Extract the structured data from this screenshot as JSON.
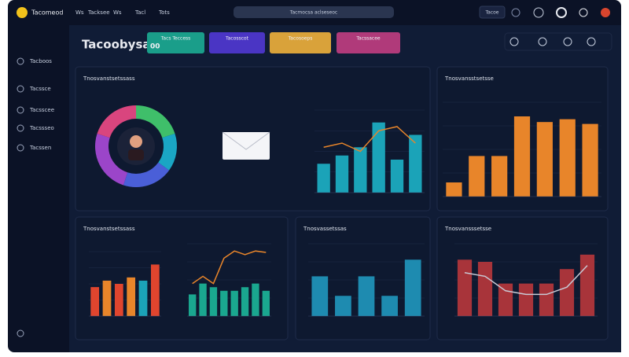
{
  "header": {
    "logo": "Tacomeod",
    "nav": [
      "Ws",
      "Tacksee",
      "Ws",
      "Tacl",
      "Tots"
    ],
    "search": "Tacmocsa aclseseoc",
    "button": "Tacoe"
  },
  "sidebar": {
    "items": [
      "Tacboos",
      "Tacssce",
      "Tacsscee",
      "Tacssseo",
      "Tacssen"
    ]
  },
  "page_title": "Tacoobysa",
  "tiles": [
    {
      "label": "Tacs Teccess",
      "value": "00",
      "color": "#1a9e8a"
    },
    {
      "label": "Tacosscot",
      "color": "#4a35c4"
    },
    {
      "label": "Tacosoeps",
      "color": "#d9a23a"
    },
    {
      "label": "Tacssacee",
      "color": "#b03a7a"
    }
  ],
  "panels": [
    {
      "title": "Tnosvanstsetssass"
    },
    {
      "title": "Tnosvansstsetsse"
    },
    {
      "title": "Tnosvanstsetssass"
    },
    {
      "title": "Tnosvassetssas"
    },
    {
      "title": "Tnosvansssetsse"
    }
  ],
  "chart_data": [
    {
      "type": "pie",
      "values": [
        20,
        15,
        20,
        25,
        20
      ],
      "colors": [
        "#3fbf6a",
        "#1aa6c4",
        "#4a5fd8",
        "#9b45c9",
        "#d9457e"
      ]
    },
    {
      "type": "bar",
      "ylim": [
        0,
        100
      ],
      "series": [
        {
          "color": "#1ba3b8",
          "values": [
            35,
            45,
            55,
            85,
            40,
            70
          ]
        },
        {
          "type": "line",
          "color": "#e8852a",
          "values": [
            55,
            60,
            50,
            75,
            80,
            60
          ]
        }
      ]
    },
    {
      "type": "bar",
      "ylim": [
        0,
        100
      ],
      "series": [
        {
          "color": "#e8852a",
          "values": [
            15,
            43,
            43,
            85,
            79,
            82,
            77
          ]
        }
      ]
    },
    {
      "type": "bar",
      "ylim": [
        0,
        100
      ],
      "series": [
        {
          "colors": [
            "#e0452e",
            "#e8852a",
            "#e0452e",
            "#e8852a",
            "#1ba3b8",
            "#e0452e"
          ],
          "values": [
            45,
            55,
            50,
            60,
            55,
            80
          ]
        }
      ]
    },
    {
      "type": "bar",
      "ylim": [
        0,
        100
      ],
      "series": [
        {
          "color": "#1aa78f",
          "values": [
            30,
            45,
            40,
            35,
            35,
            40,
            45,
            35
          ]
        },
        {
          "type": "line",
          "color": "#e8852a",
          "values": [
            45,
            55,
            45,
            80,
            90,
            85,
            90,
            88
          ]
        }
      ]
    },
    {
      "type": "bar",
      "ylim": [
        0,
        100
      ],
      "series": [
        {
          "color": "#1e8bb0",
          "values": [
            55,
            28,
            55,
            28,
            78
          ]
        }
      ]
    },
    {
      "type": "bar",
      "ylim": [
        0,
        100
      ],
      "series": [
        {
          "color": "#a8343a",
          "values": [
            78,
            75,
            45,
            45,
            45,
            65,
            85
          ]
        },
        {
          "type": "line",
          "color": "#c9c9d4",
          "values": [
            60,
            55,
            35,
            30,
            30,
            40,
            70
          ]
        }
      ]
    }
  ]
}
